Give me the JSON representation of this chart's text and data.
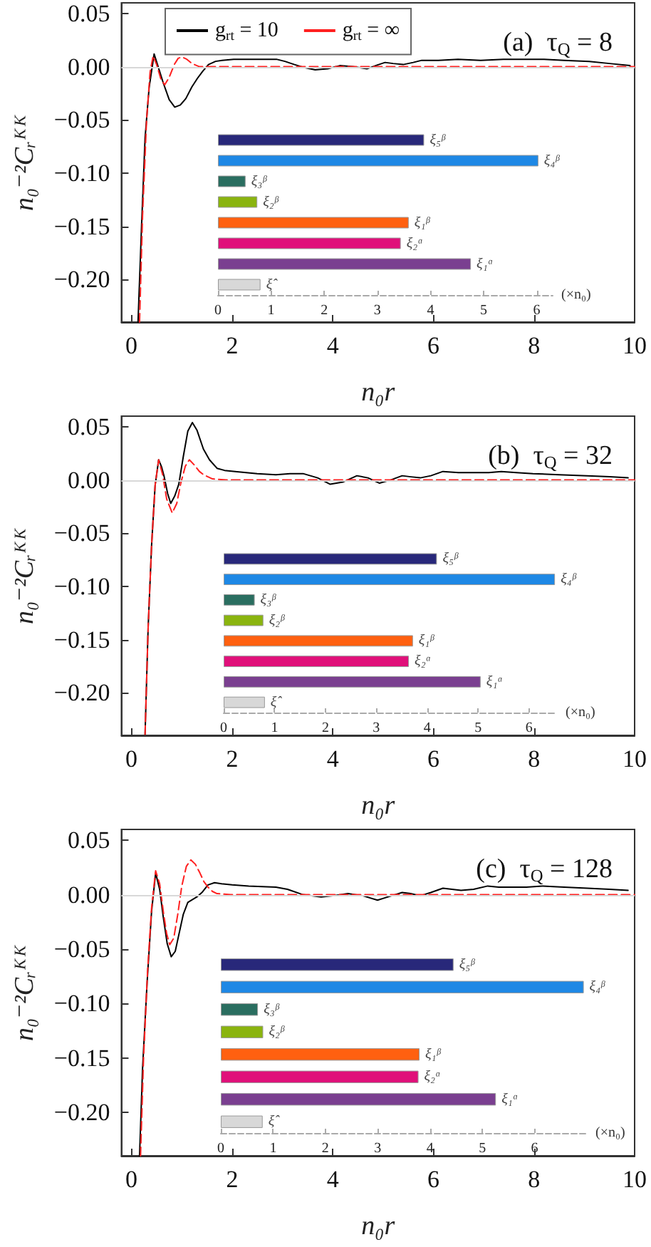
{
  "chart_data": [
    {
      "type": "line",
      "title": "(a)  τ$_{Q}$ = 8",
      "xlabel": "n₀r",
      "ylabel": "n₀⁻²Cᵣᴷᴷ",
      "xlim": [
        -0.2,
        10
      ],
      "xticks": [
        0,
        2,
        4,
        6,
        8,
        10
      ],
      "ylim": [
        -0.24,
        0.06
      ],
      "yticks": [
        {
          "value": -0.2,
          "label": "−0.20"
        },
        {
          "value": -0.15,
          "label": "−0.15"
        },
        {
          "value": -0.1,
          "label": "−0.10"
        },
        {
          "value": -0.05,
          "label": "−0.05"
        },
        {
          "value": 0,
          "label": "0.00"
        },
        {
          "value": 0.05,
          "label": "0.05"
        }
      ],
      "legend": "top left",
      "marker": "none",
      "ref_lines": [
        {
          "axis": "y",
          "value": 0,
          "color": "#d8d8d8"
        }
      ],
      "series": [
        {
          "name": "g$_{rt}$ = 10",
          "color": "#000000",
          "line_style": "solid",
          "x": [
            0.13,
            0.2,
            0.27,
            0.35,
            0.45,
            0.55,
            0.63,
            0.75,
            0.86,
            0.97,
            1.08,
            1.2,
            1.31,
            1.42,
            1.53,
            1.67,
            1.8,
            2.03,
            2.5,
            2.88,
            3.05,
            3.24,
            3.45,
            3.65,
            3.9,
            4.14,
            4.4,
            4.68,
            4.85,
            5.04,
            5.2,
            5.4,
            5.6,
            5.77,
            6.1,
            6.49,
            6.94,
            7.39,
            7.8,
            8.2,
            8.6,
            9.1,
            9.5,
            9.91
          ],
          "values": [
            -0.24,
            -0.15,
            -0.067,
            -0.02,
            0.012,
            -0.003,
            -0.015,
            -0.031,
            -0.038,
            -0.036,
            -0.03,
            -0.019,
            -0.011,
            -0.004,
            0.002,
            0.005,
            0.006,
            0.007,
            0.007,
            0.007,
            0.005,
            0.002,
            -0.001,
            -0.003,
            -0.002,
            0.001,
            0.0,
            -0.002,
            0.001,
            0.004,
            0.003,
            0.002,
            0.004,
            0.006,
            0.006,
            0.007,
            0.006,
            0.007,
            0.007,
            0.007,
            0.006,
            0.005,
            0.003,
            0.001
          ]
        },
        {
          "name": "g$_{rt}$ = ∞",
          "color": "#ff2020",
          "line_style": "dashed",
          "x": [
            0.16,
            0.22,
            0.3,
            0.37,
            0.43,
            0.5,
            0.58,
            0.66,
            0.75,
            0.85,
            0.93,
            1.01,
            1.1,
            1.2,
            1.35,
            1.5,
            2,
            4,
            6,
            8,
            10
          ],
          "values": [
            -0.24,
            -0.14,
            -0.05,
            -0.005,
            0.01,
            0.002,
            -0.011,
            -0.017,
            -0.01,
            0.002,
            0.008,
            0.009,
            0.007,
            0.003,
            0.0,
            0,
            0,
            0,
            0,
            0,
            0
          ]
        }
      ]
    },
    {
      "type": "bar",
      "orientation": "horizontal",
      "categories": [
        "ξ₅ᵝ",
        "ξ₄ᵝ",
        "ξ₃ᵝ",
        "ξ₂ᵝ",
        "ξ₁ᵝ",
        "ξ₂ᵅ",
        "ξ₁ᵅ",
        "ξ̂"
      ],
      "values": [
        3.88,
        6.03,
        0.52,
        0.74,
        3.59,
        3.44,
        4.76,
        0.8
      ],
      "colors": [
        "#28287a",
        "#1e88e5",
        "#2a6e60",
        "#8ab40f",
        "#ff6010",
        "#e0107a",
        "#7a3f90",
        "#d8d8d8"
      ],
      "xlim": [
        0,
        6.3
      ],
      "xticks": [
        0,
        1,
        2,
        3,
        4,
        5,
        6
      ],
      "xlabel": "(×n₀)",
      "tick_labels": "x"
    },
    {
      "type": "line",
      "title": "(b)  τ$_{Q}$ = 32",
      "xlabel": "n₀r",
      "ylabel": "n₀⁻²Cᵣᴷᴷ",
      "xlim": [
        -0.2,
        10
      ],
      "xticks": [
        0,
        2,
        4,
        6,
        8,
        10
      ],
      "ylim": [
        -0.24,
        0.06
      ],
      "yticks": [
        {
          "value": -0.2,
          "label": "−0.20"
        },
        {
          "value": -0.15,
          "label": "−0.15"
        },
        {
          "value": -0.1,
          "label": "−0.10"
        },
        {
          "value": -0.05,
          "label": "−0.05"
        },
        {
          "value": 0,
          "label": "0.00"
        },
        {
          "value": 0.05,
          "label": "0.05"
        }
      ],
      "marker": "none",
      "ref_lines": [
        {
          "axis": "y",
          "value": 0,
          "color": "#d8d8d8"
        }
      ],
      "series": [
        {
          "color": "#000000",
          "line_style": "solid",
          "x": [
            0.27,
            0.33,
            0.4,
            0.47,
            0.54,
            0.6,
            0.65,
            0.72,
            0.78,
            0.86,
            0.94,
            1.03,
            1.12,
            1.21,
            1.3,
            1.43,
            1.55,
            1.7,
            1.85,
            2.06,
            2.5,
            2.87,
            3.15,
            3.41,
            3.7,
            3.95,
            4.2,
            4.48,
            4.7,
            4.93,
            5.15,
            5.38,
            5.55,
            5.74,
            5.95,
            6.19,
            6.5,
            6.82,
            7.1,
            7.35,
            7.65,
            7.98,
            8.5,
            9.06,
            9.5,
            9.87
          ],
          "values": [
            -0.239,
            -0.14,
            -0.061,
            -0.005,
            0.019,
            0.012,
            0.003,
            -0.013,
            -0.022,
            -0.015,
            -0.004,
            0.022,
            0.046,
            0.054,
            0.047,
            0.029,
            0.019,
            0.011,
            0.009,
            0.008,
            0.006,
            0.005,
            0.006,
            0.006,
            0.002,
            -0.004,
            -0.002,
            0.004,
            0.002,
            -0.003,
            0.0,
            0.004,
            0.003,
            0.002,
            0.004,
            0.008,
            0.007,
            0.007,
            0.007,
            0.008,
            0.007,
            0.006,
            0.005,
            0.004,
            0.003,
            0.002
          ]
        },
        {
          "color": "#ff2020",
          "line_style": "dashed",
          "x": [
            0.27,
            0.33,
            0.4,
            0.47,
            0.54,
            0.62,
            0.7,
            0.81,
            0.9,
            0.98,
            1.07,
            1.15,
            1.25,
            1.35,
            1.43,
            1.52,
            1.61,
            1.88,
            4,
            6,
            8,
            10
          ],
          "values": [
            -0.239,
            -0.14,
            -0.061,
            -0.005,
            0.019,
            0.005,
            -0.018,
            -0.031,
            -0.022,
            -0.003,
            0.013,
            0.019,
            0.014,
            0.008,
            0.005,
            0.003,
            0.001,
            0,
            0,
            0,
            0,
            0
          ]
        }
      ]
    },
    {
      "type": "bar",
      "orientation": "horizontal",
      "categories": [
        "ξ₅ᵝ",
        "ξ₄ᵝ",
        "ξ₃ᵝ",
        "ξ₂ᵝ",
        "ξ₁ᵝ",
        "ξ₂ᵅ",
        "ξ₁ᵅ",
        "ξ̂"
      ],
      "values": [
        4.19,
        6.51,
        0.61,
        0.78,
        3.72,
        3.64,
        5.05,
        0.81
      ],
      "colors": [
        "#28287a",
        "#1e88e5",
        "#2a6e60",
        "#8ab40f",
        "#ff6010",
        "#e0107a",
        "#7a3f90",
        "#d8d8d8"
      ],
      "xlim": [
        0,
        6.55
      ],
      "xticks": [
        0,
        1,
        2,
        3,
        4,
        5,
        6
      ],
      "xlabel": "(×n₀)",
      "tick_labels": "x"
    },
    {
      "type": "line",
      "title": "(c)  τ$_{Q}$ = 128",
      "xlabel": "n₀r",
      "ylabel": "n₀⁻²Cᵣᴷᴷ",
      "xlim": [
        -0.2,
        10
      ],
      "xticks": [
        0,
        2,
        4,
        6,
        8,
        10
      ],
      "ylim": [
        -0.24,
        0.06
      ],
      "yticks": [
        {
          "value": -0.2,
          "label": "−0.20"
        },
        {
          "value": -0.15,
          "label": "−0.15"
        },
        {
          "value": -0.1,
          "label": "−0.10"
        },
        {
          "value": -0.05,
          "label": "−0.05"
        },
        {
          "value": 0,
          "label": "0.00"
        },
        {
          "value": 0.05,
          "label": "0.05"
        }
      ],
      "marker": "none",
      "ref_lines": [
        {
          "axis": "y",
          "value": 0,
          "color": "#d8d8d8"
        }
      ],
      "series": [
        {
          "color": "#000000",
          "line_style": "solid",
          "x": [
            0.16,
            0.22,
            0.31,
            0.4,
            0.48,
            0.56,
            0.63,
            0.71,
            0.79,
            0.87,
            0.94,
            1.03,
            1.12,
            1.3,
            1.4,
            1.52,
            1.65,
            1.79,
            2.0,
            2.33,
            2.87,
            3.1,
            3.41,
            3.77,
            4.0,
            4.3,
            4.6,
            4.89,
            5.1,
            5.38,
            5.55,
            5.74,
            5.95,
            6.19,
            6.37,
            6.55,
            6.8,
            7.08,
            7.3,
            7.53,
            7.85,
            8.16,
            8.6,
            9.06,
            9.5,
            9.87
          ],
          "values": [
            -0.24,
            -0.16,
            -0.081,
            -0.015,
            0.02,
            0.005,
            -0.02,
            -0.045,
            -0.057,
            -0.052,
            -0.037,
            -0.018,
            -0.007,
            -0.002,
            0.002,
            0.009,
            0.011,
            0.01,
            0.009,
            0.008,
            0.007,
            0.005,
            0.0,
            -0.002,
            -0.001,
            0.001,
            -0.001,
            -0.005,
            -0.002,
            0.002,
            0.001,
            -0.001,
            0.002,
            0.006,
            0.005,
            0.004,
            0.005,
            0.008,
            0.007,
            0.007,
            0.007,
            0.008,
            0.007,
            0.006,
            0.005,
            0.004
          ]
        },
        {
          "color": "#ff2020",
          "line_style": "dashed",
          "x": [
            0.18,
            0.24,
            0.32,
            0.4,
            0.48,
            0.56,
            0.64,
            0.7,
            0.76,
            0.84,
            0.92,
            1.0,
            1.09,
            1.18,
            1.27,
            1.36,
            1.44,
            1.52,
            1.61,
            1.7,
            1.97,
            4,
            6,
            8,
            10
          ],
          "values": [
            -0.24,
            -0.15,
            -0.07,
            -0.012,
            0.022,
            0.01,
            -0.018,
            -0.036,
            -0.046,
            -0.04,
            -0.018,
            0.008,
            0.026,
            0.032,
            0.028,
            0.02,
            0.012,
            0.007,
            0.003,
            0.001,
            0,
            0,
            0,
            0,
            0
          ]
        }
      ]
    },
    {
      "type": "bar",
      "orientation": "horizontal",
      "categories": [
        "ξ₅ᵝ",
        "ξ₄ᵝ",
        "ξ₃ᵝ",
        "ξ₂ᵝ",
        "ξ₁ᵝ",
        "ξ₂ᵅ",
        "ξ₁ᵅ",
        "ξ̂"
      ],
      "values": [
        4.45,
        6.94,
        0.71,
        0.81,
        3.8,
        3.78,
        5.26,
        0.8
      ],
      "colors": [
        "#28287a",
        "#1e88e5",
        "#2a6e60",
        "#8ab40f",
        "#ff6010",
        "#e0107a",
        "#7a3f90",
        "#d8d8d8"
      ],
      "xlim": [
        0,
        7
      ],
      "xticks": [
        0,
        1,
        2,
        3,
        4,
        5,
        6
      ],
      "xlabel": "(×n₀)",
      "tick_labels": "x"
    }
  ]
}
